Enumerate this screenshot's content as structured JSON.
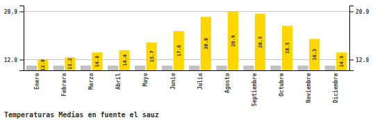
{
  "chart_data": {
    "type": "bar",
    "title": "Temperaturas Medias en fuente el sauz",
    "categories": [
      "Enero",
      "Febrero",
      "Marzo",
      "Abril",
      "Mayo",
      "Junio",
      "Julio",
      "Agosto",
      "Septiembre",
      "Octubre",
      "Noviembre",
      "Diciembre"
    ],
    "series": [
      {
        "color": "#C0C0C0",
        "values": [
          11.8,
          11.8,
          11.8,
          11.8,
          11.8,
          11.8,
          11.8,
          11.8,
          11.8,
          11.8,
          11.8,
          11.8
        ]
      },
      {
        "color": "#FFD700",
        "values": [
          12.8,
          13.2,
          14.0,
          14.4,
          15.7,
          17.6,
          20.0,
          20.9,
          20.5,
          18.5,
          16.3,
          14.0
        ],
        "value_labels": [
          "12.8",
          "13.2",
          "14.0",
          "14.4",
          "15.7",
          "17.6",
          "20.0",
          "20.9",
          "20.5",
          "18.5",
          "16.3",
          "14.0"
        ],
        "data_labels": true
      }
    ],
    "ylim": [
      11.0,
      21.9
    ],
    "yticks": [
      12.8,
      20.9
    ],
    "grid": true
  }
}
